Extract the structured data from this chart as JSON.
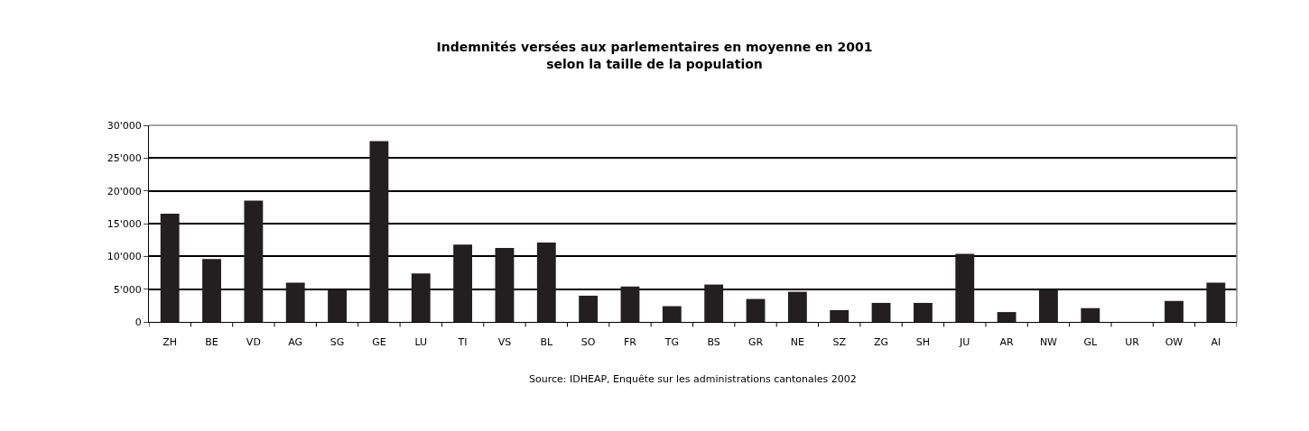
{
  "chart_data": {
    "type": "bar",
    "title": "Indemnités versées aux parlementaires en moyenne en 2001\nselon la taille de la population",
    "categories": [
      "ZH",
      "BE",
      "VD",
      "AG",
      "SG",
      "GE",
      "LU",
      "TI",
      "VS",
      "BL",
      "SO",
      "FR",
      "TG",
      "BS",
      "GR",
      "NE",
      "SZ",
      "ZG",
      "SH",
      "JU",
      "AR",
      "NW",
      "GL",
      "UR",
      "OW",
      "AI"
    ],
    "values": [
      16500,
      9600,
      18500,
      6000,
      4900,
      27600,
      7400,
      11800,
      11300,
      12100,
      4000,
      5400,
      2400,
      5700,
      3500,
      4600,
      1800,
      2900,
      2900,
      10400,
      1500,
      4900,
      2100,
      0,
      3200,
      6000
    ],
    "color": "#231f20",
    "ylim": [
      0,
      30000
    ],
    "yticks": [
      {
        "value": 0,
        "label": "0"
      },
      {
        "value": 5000,
        "label": "5'000"
      },
      {
        "value": 10000,
        "label": "10'000"
      },
      {
        "value": 15000,
        "label": "15'000"
      },
      {
        "value": 20000,
        "label": "20'000"
      },
      {
        "value": 25000,
        "label": "25'000"
      },
      {
        "value": 30000,
        "label": "30'000"
      }
    ],
    "grid": "y",
    "legend": false,
    "annotations": [
      "Source: IDHEAP, Enquête sur les administrations cantonales 2002"
    ]
  }
}
